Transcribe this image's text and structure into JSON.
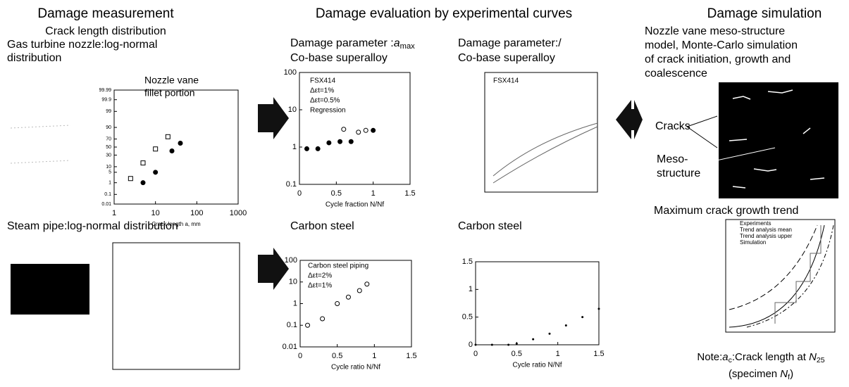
{
  "headers": [
    "Damage measurement",
    "Damage evaluation by experimental curves",
    "Damage simulation"
  ],
  "panels": [
    {
      "title": [
        "Crack length distribution",
        "Gas turbine nozzle:log-normal",
        "distribution"
      ],
      "annotation": [
        "Nozzle vane",
        "fillet portion"
      ],
      "xscale": "log",
      "yscale": "probability",
      "xticks": [
        1,
        10,
        100,
        1000
      ],
      "yticks": [
        0.01,
        0.1,
        1,
        5,
        10,
        30,
        50,
        70,
        90,
        99,
        99.9,
        99.99
      ],
      "xlabel": "Crack length a, mm",
      "series": [
        {
          "x": [
            2.5,
            5,
            10,
            20
          ],
          "y": [
            2,
            15,
            45,
            75
          ],
          "marker": "square"
        },
        {
          "x": [
            5,
            10,
            25,
            40
          ],
          "y": [
            1,
            5,
            40,
            60
          ],
          "marker": "circle"
        }
      ]
    },
    {
      "title": [
        "Steam pipe:log-normal distribution"
      ]
    },
    {
      "title": [
        [
          {
            "t": "Damage parameter :"
          },
          {
            "t": "a",
            "i": true
          },
          {
            "t": "max",
            "sub": true
          }
        ],
        "Co-base superalloy"
      ],
      "xscale": "linear",
      "yscale": "log",
      "xticks": [
        0,
        0.5,
        1,
        1.5
      ],
      "yticks": [
        0.1,
        1,
        10,
        100
      ],
      "xlabel": "Cycle fraction N/Nf",
      "legend": [
        "FSX414",
        "Δεt=1%",
        "Δεt=0.5%",
        "Regression"
      ],
      "series": [
        {
          "x": [
            0.1,
            0.25,
            0.4,
            0.55,
            0.7,
            1.0
          ],
          "y": [
            0.9,
            0.9,
            1.3,
            1.4,
            1.4,
            2.8
          ],
          "marker": "circle"
        },
        {
          "x": [
            0.6,
            0.8,
            0.9
          ],
          "y": [
            3,
            2.5,
            2.8
          ],
          "marker": "open"
        }
      ]
    },
    {
      "title": [
        "Damage parameter:/",
        "Co-base superalloy"
      ],
      "legend": [
        "FSX414"
      ]
    },
    {
      "title": [
        "Carbon steel"
      ],
      "xscale": "linear",
      "yscale": "log",
      "xticks": [
        0,
        0.5,
        1,
        1.5
      ],
      "yticks": [
        0.01,
        0.1,
        1,
        10,
        100
      ],
      "xlabel": "Cycle ratio N/Nf",
      "legend": [
        "Carbon steel piping",
        "Δεt=2%",
        "Δεt=1%"
      ],
      "series": [
        {
          "x": [
            0.1,
            0.3,
            0.5,
            0.65,
            0.8,
            0.9
          ],
          "y": [
            0.1,
            0.2,
            1,
            2,
            4,
            8
          ],
          "marker": "open"
        }
      ]
    },
    {
      "title": [
        "Carbon steel"
      ],
      "xscale": "linear",
      "yscale": "linear",
      "xticks": [
        0,
        0.5,
        1,
        1.5
      ],
      "yticks": [
        0,
        0.5,
        1,
        1.5
      ],
      "xlabel": "Cycle ratio N/Nf",
      "series": [
        {
          "x": [
            0,
            0.2,
            0.4,
            0.5,
            0.7,
            0.9,
            1.1,
            1.3,
            1.5
          ],
          "y": [
            0,
            0,
            0,
            0.02,
            0.1,
            0.2,
            0.35,
            0.5,
            0.65
          ],
          "marker": "dot"
        }
      ]
    },
    {
      "title": [
        "Nozzle vane meso-structure",
        "model, Monte-Carlo simulation",
        "of crack initiation, growth and",
        "coalescence"
      ],
      "labels": [
        "Cracks",
        "Meso-",
        "structure"
      ]
    },
    {
      "title": [
        "Maximum crack growth trend"
      ],
      "legend": [
        "Experiments",
        "Trend analysis mean",
        "Trend analysis upper",
        "Simulation"
      ],
      "note": [
        [
          {
            "t": "Note:"
          },
          {
            "t": "a",
            "i": true
          },
          {
            "t": "c",
            "sub": true
          },
          {
            "t": ":Crack length at "
          },
          {
            "t": "N",
            "i": true
          },
          {
            "t": "25",
            "sub": true
          }
        ],
        [
          {
            "t": "(specimen "
          },
          {
            "t": "N",
            "i": true
          },
          {
            "t": "f",
            "sub": true
          },
          {
            "t": ")"
          }
        ]
      ]
    }
  ]
}
